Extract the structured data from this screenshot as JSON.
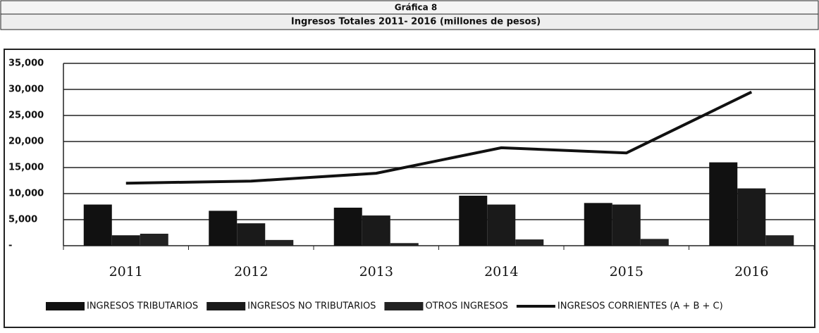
{
  "chart_data": {
    "type": "bar",
    "title": "Gráfica 8",
    "subtitle": "Ingresos Totales 2011- 2016 (millones de pesos)",
    "categories": [
      "2011",
      "2012",
      "2013",
      "2014",
      "2015",
      "2016"
    ],
    "series": [
      {
        "name": "INGRESOS TRIBUTARIOS",
        "color": "#111111",
        "values": [
          7900,
          6700,
          7300,
          9600,
          8200,
          16000
        ]
      },
      {
        "name": "INGRESOS NO TRIBUTARIOS",
        "color": "#1a1a1a",
        "values": [
          2000,
          4300,
          5800,
          7900,
          7900,
          11000
        ]
      },
      {
        "name": "OTROS INGRESOS",
        "color": "#222222",
        "values": [
          2300,
          1100,
          500,
          1200,
          1300,
          2000
        ]
      },
      {
        "name": "INGRESOS CORRIENTES (A + B + C)",
        "color": "#111111",
        "type": "line",
        "values": [
          12000,
          12400,
          13900,
          18800,
          17800,
          29500
        ]
      }
    ],
    "ylim": [
      0,
      35000
    ],
    "yticks": [
      {
        "value": 0,
        "label": "-"
      },
      {
        "value": 5000,
        "label": "5,000"
      },
      {
        "value": 10000,
        "label": "10,000"
      },
      {
        "value": 15000,
        "label": "15,000"
      },
      {
        "value": 20000,
        "label": "20,000"
      },
      {
        "value": 25000,
        "label": "25,000"
      },
      {
        "value": 30000,
        "label": "30,000"
      },
      {
        "value": 35000,
        "label": "35,000"
      }
    ],
    "grid": true
  }
}
